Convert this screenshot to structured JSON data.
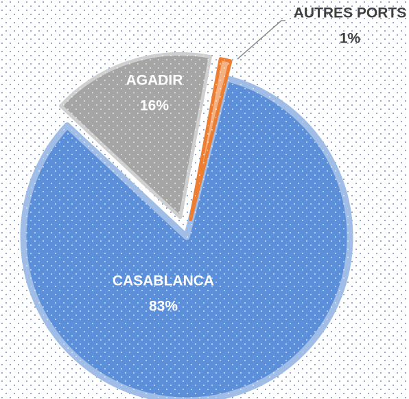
{
  "chart_data": {
    "type": "pie",
    "categories": [
      "CASABLANCA",
      "AGADIR",
      "AUTRES PORTS"
    ],
    "values": [
      83,
      16,
      1
    ],
    "value_labels": [
      "83%",
      "16%",
      "1%"
    ],
    "colors": [
      "#5b8fd9",
      "#a5a5a5",
      "#f4b183"
    ]
  }
}
